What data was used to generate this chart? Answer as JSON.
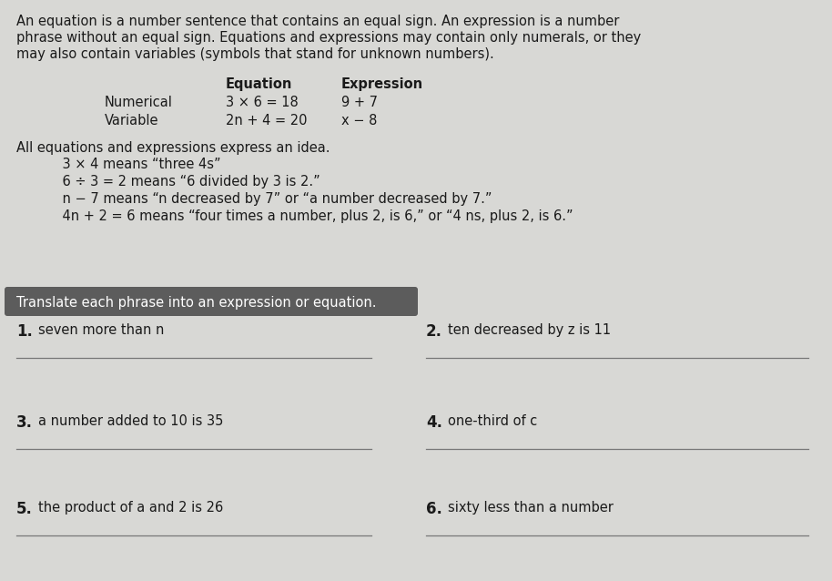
{
  "bg_color": "#d8d8d5",
  "header_text_line1": "An equation is a number sentence that contains an equal sign. An expression is a number",
  "header_text_line2": "phrase without an equal sign. Equations and expressions may contain only numerals, or they",
  "header_text_line3": "may also contain variables (symbols that stand for unknown numbers).",
  "table_header_eq": "Equation",
  "table_header_ex": "Expression",
  "table_row1_label": "Numerical",
  "table_row1_eq": "3 × 6 = 18",
  "table_row1_ex": "9 + 7",
  "table_row2_label": "Variable",
  "table_row2_eq": "2n + 4 = 20",
  "table_row2_ex": "x − 8",
  "idea_text": "All equations and expressions express an idea.",
  "examples": [
    "    3 × 4 means “three 4s”",
    "    6 ÷ 3 = 2 means “6 divided by 3 is 2.”",
    "    n − 7 means “n decreased by 7” or “a number decreased by 7.”",
    "    4n + 2 = 6 means “four times a number, plus 2, is 6,” or “4 ns, plus 2, is 6.”"
  ],
  "banner_text": "Translate each phrase into an expression or equation.",
  "banner_bg": "#5c5c5c",
  "banner_fg": "#ffffff",
  "problems": [
    {
      "num": "1.",
      "text": "seven more than n"
    },
    {
      "num": "2.",
      "text": "ten decreased by z is 11"
    },
    {
      "num": "3.",
      "text": "a number added to 10 is 35"
    },
    {
      "num": "4.",
      "text": "one-third of c"
    },
    {
      "num": "5.",
      "text": "the product of a and 2 is 26"
    },
    {
      "num": "6.",
      "text": "sixty less than a number"
    }
  ],
  "font_size_body": 10.5,
  "font_size_num": 12,
  "text_color": "#1a1a1a"
}
